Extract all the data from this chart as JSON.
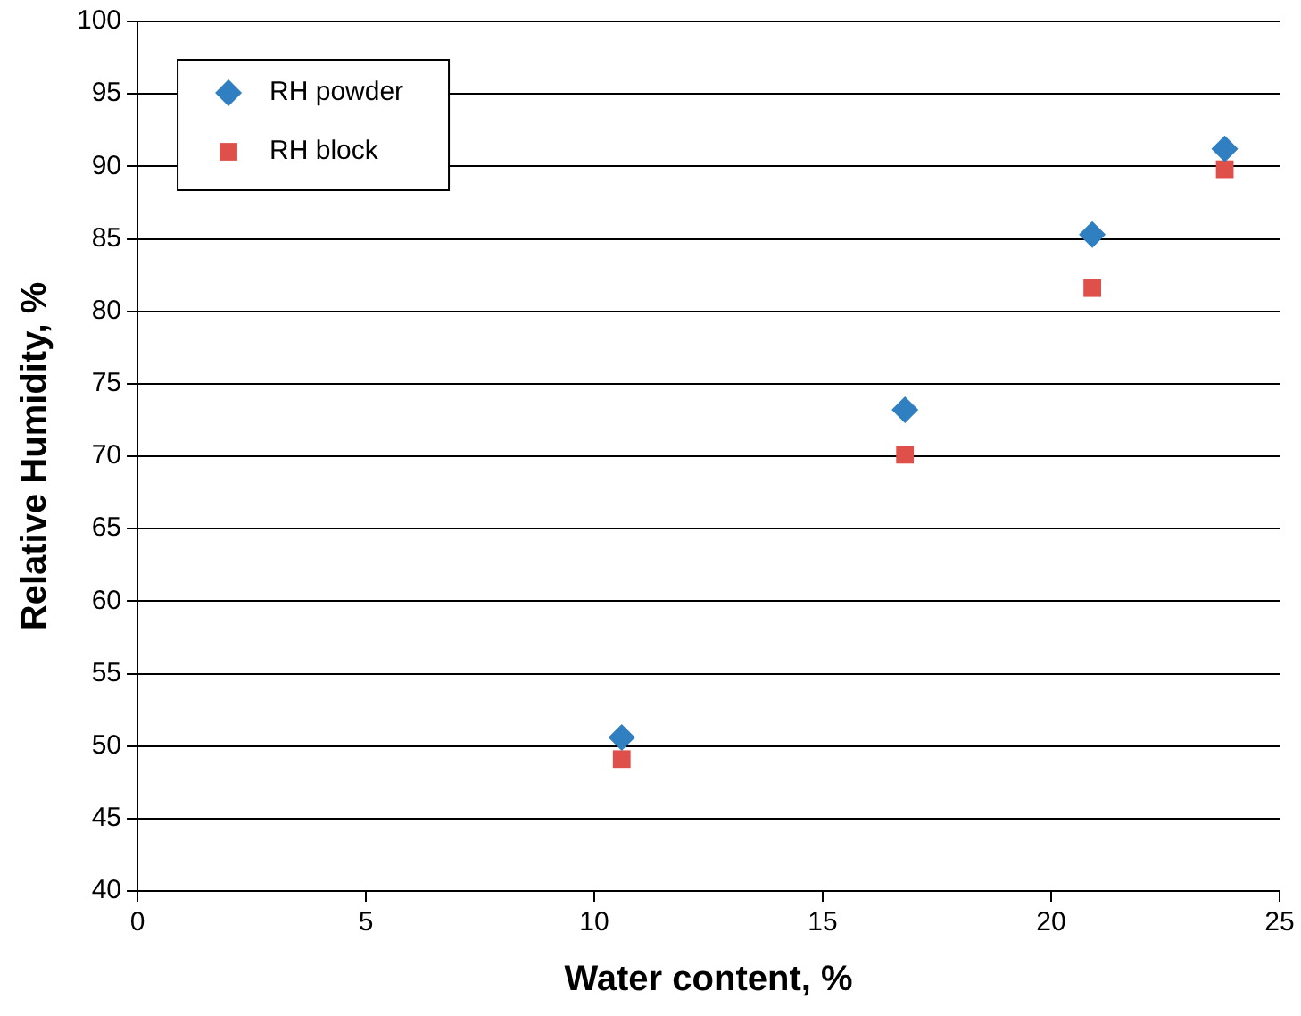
{
  "chart_data": {
    "type": "scatter",
    "xlabel": "Water content, %",
    "ylabel": "Relative Humidity, %",
    "xlim": [
      0,
      25
    ],
    "xticks": [
      0,
      5,
      10,
      15,
      20,
      25
    ],
    "ylim": [
      40,
      100
    ],
    "yticks": [
      40,
      45,
      50,
      55,
      60,
      65,
      70,
      75,
      80,
      85,
      90,
      95,
      100
    ],
    "grid": "y",
    "legend": "top left",
    "series": [
      {
        "name": "RH powder",
        "color": "#2f7fc1",
        "marker": "diamond",
        "x": [
          10.6,
          16.8,
          20.9,
          23.8
        ],
        "values": [
          50.6,
          73.2,
          85.3,
          91.2
        ]
      },
      {
        "name": "RH block",
        "color": "#e0504a",
        "marker": "square",
        "x": [
          10.6,
          16.8,
          20.9,
          23.8
        ],
        "values": [
          49.1,
          70.1,
          81.6,
          89.8
        ]
      }
    ]
  }
}
